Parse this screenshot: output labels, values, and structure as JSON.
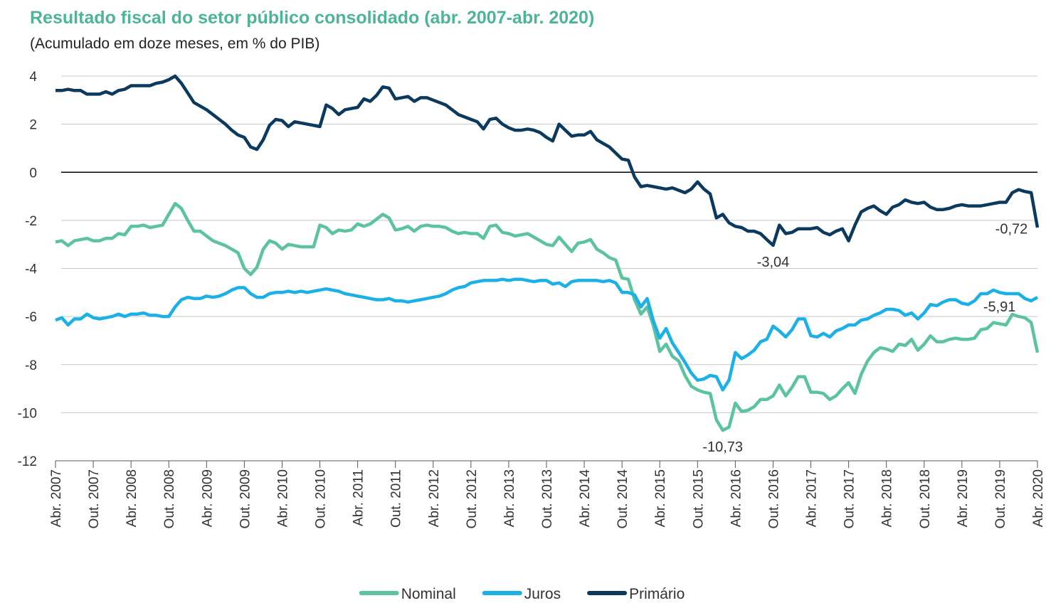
{
  "chart_data": {
    "type": "line",
    "title": "Resultado fiscal do setor público consolidado (abr. 2007-abr. 2020)",
    "subtitle": "(Acumulado em doze meses, em % do PIB)",
    "categories": [
      "Abr. 2007",
      null,
      null,
      null,
      null,
      null,
      "Out. 2007",
      null,
      null,
      null,
      null,
      null,
      "Abr. 2008",
      null,
      null,
      null,
      null,
      null,
      "Out. 2008",
      null,
      null,
      null,
      null,
      null,
      "Abr. 2009",
      null,
      null,
      null,
      null,
      null,
      "Out. 2009",
      null,
      null,
      null,
      null,
      null,
      "Abr. 2010",
      null,
      null,
      null,
      null,
      null,
      "Out. 2010",
      null,
      null,
      null,
      null,
      null,
      "Abr. 2011",
      null,
      null,
      null,
      null,
      null,
      "Out. 2011",
      null,
      null,
      null,
      null,
      null,
      "Abr. 2012",
      null,
      null,
      null,
      null,
      null,
      "Out. 2012",
      null,
      null,
      null,
      null,
      null,
      "Abr. 2013",
      null,
      null,
      null,
      null,
      null,
      "Out. 2013",
      null,
      null,
      null,
      null,
      null,
      "Abr. 2014",
      null,
      null,
      null,
      null,
      null,
      "Out. 2014",
      null,
      null,
      null,
      null,
      null,
      "Abr. 2015",
      null,
      null,
      null,
      null,
      null,
      "Out. 2015",
      null,
      null,
      null,
      null,
      null,
      "Abr. 2016",
      null,
      null,
      null,
      null,
      null,
      "Out. 2016",
      null,
      null,
      null,
      null,
      null,
      "Abr. 2017",
      null,
      null,
      null,
      null,
      null,
      "Out. 2017",
      null,
      null,
      null,
      null,
      null,
      "Abr. 2018",
      null,
      null,
      null,
      null,
      null,
      "Out. 2018",
      null,
      null,
      null,
      null,
      null,
      "Abr. 2019",
      null,
      null,
      null,
      null,
      null,
      "Out. 2019",
      null,
      null,
      null,
      null,
      null,
      "Abr. 2020"
    ],
    "series": [
      {
        "name": "Nominal",
        "color": "#5cc3a0",
        "values": [
          -2.9,
          -2.85,
          -3.05,
          -2.85,
          -2.8,
          -2.75,
          -2.85,
          -2.85,
          -2.75,
          -2.75,
          -2.55,
          -2.6,
          -2.25,
          -2.25,
          -2.2,
          -2.3,
          -2.25,
          -2.2,
          -1.75,
          -1.3,
          -1.5,
          -2.0,
          -2.45,
          -2.45,
          -2.65,
          -2.85,
          -2.95,
          -3.05,
          -3.2,
          -3.35,
          -4.0,
          -4.25,
          -3.95,
          -3.2,
          -2.85,
          -2.95,
          -3.2,
          -3.0,
          -3.05,
          -3.1,
          -3.1,
          -3.1,
          -2.2,
          -2.3,
          -2.55,
          -2.4,
          -2.45,
          -2.4,
          -2.15,
          -2.25,
          -2.15,
          -1.95,
          -1.75,
          -1.9,
          -2.4,
          -2.35,
          -2.25,
          -2.45,
          -2.25,
          -2.2,
          -2.25,
          -2.25,
          -2.3,
          -2.45,
          -2.55,
          -2.5,
          -2.55,
          -2.55,
          -2.75,
          -2.25,
          -2.2,
          -2.5,
          -2.55,
          -2.65,
          -2.6,
          -2.55,
          -2.7,
          -2.85,
          -3.0,
          -3.05,
          -2.7,
          -3.0,
          -3.3,
          -2.95,
          -2.9,
          -2.8,
          -3.2,
          -3.35,
          -3.55,
          -3.65,
          -4.4,
          -4.45,
          -5.3,
          -5.9,
          -5.6,
          -6.4,
          -7.45,
          -7.15,
          -7.65,
          -7.85,
          -8.45,
          -8.9,
          -9.05,
          -9.15,
          -9.2,
          -10.3,
          -10.73,
          -10.6,
          -9.6,
          -9.95,
          -9.9,
          -9.75,
          -9.45,
          -9.45,
          -9.3,
          -8.85,
          -9.3,
          -8.95,
          -8.5,
          -8.5,
          -9.15,
          -9.15,
          -9.2,
          -9.45,
          -9.3,
          -9.0,
          -8.75,
          -9.2,
          -8.4,
          -7.85,
          -7.5,
          -7.3,
          -7.35,
          -7.45,
          -7.15,
          -7.2,
          -6.95,
          -7.4,
          -7.15,
          -6.8,
          -7.05,
          -7.05,
          -6.95,
          -6.9,
          -6.95,
          -6.95,
          -6.9,
          -6.55,
          -6.5,
          -6.25,
          -6.3,
          -6.35,
          -5.91,
          -6.0,
          -6.05,
          -6.25,
          -7.5
        ],
        "value_labels": {
          "106": "-10,73",
          "152": "-5,91"
        }
      },
      {
        "name": "Juros",
        "color": "#1bb0e6",
        "values": [
          -6.15,
          -6.05,
          -6.35,
          -6.1,
          -6.1,
          -5.9,
          -6.05,
          -6.1,
          -6.05,
          -6.0,
          -5.9,
          -6.0,
          -5.9,
          -5.9,
          -5.85,
          -5.95,
          -5.95,
          -6.0,
          -6.0,
          -5.6,
          -5.3,
          -5.2,
          -5.25,
          -5.25,
          -5.15,
          -5.2,
          -5.15,
          -5.05,
          -4.9,
          -4.8,
          -4.8,
          -5.05,
          -5.2,
          -5.2,
          -5.05,
          -5.0,
          -5.0,
          -4.95,
          -5.0,
          -4.95,
          -5.0,
          -4.95,
          -4.9,
          -4.85,
          -4.9,
          -4.95,
          -5.05,
          -5.1,
          -5.15,
          -5.2,
          -5.25,
          -5.3,
          -5.3,
          -5.25,
          -5.35,
          -5.35,
          -5.4,
          -5.35,
          -5.3,
          -5.25,
          -5.2,
          -5.15,
          -5.05,
          -4.9,
          -4.8,
          -4.75,
          -4.6,
          -4.55,
          -4.5,
          -4.5,
          -4.5,
          -4.45,
          -4.5,
          -4.45,
          -4.45,
          -4.5,
          -4.55,
          -4.5,
          -4.5,
          -4.65,
          -4.6,
          -4.75,
          -4.55,
          -4.5,
          -4.5,
          -4.5,
          -4.5,
          -4.55,
          -4.5,
          -4.6,
          -5.0,
          -5.0,
          -5.1,
          -5.6,
          -5.25,
          -6.2,
          -6.9,
          -6.5,
          -7.1,
          -7.5,
          -7.9,
          -8.35,
          -8.65,
          -8.6,
          -8.45,
          -8.5,
          -9.05,
          -8.65,
          -7.5,
          -7.75,
          -7.6,
          -7.4,
          -7.05,
          -6.95,
          -6.4,
          -6.6,
          -6.85,
          -6.55,
          -6.1,
          -6.1,
          -6.8,
          -6.85,
          -6.7,
          -6.85,
          -6.6,
          -6.5,
          -6.35,
          -6.35,
          -6.15,
          -6.1,
          -5.95,
          -5.85,
          -5.7,
          -5.7,
          -5.75,
          -5.95,
          -5.85,
          -6.1,
          -5.85,
          -5.5,
          -5.55,
          -5.4,
          -5.3,
          -5.3,
          -5.45,
          -5.5,
          -5.35,
          -5.05,
          -5.05,
          -4.9,
          -5.0,
          -5.05,
          -5.05,
          -5.05,
          -5.25,
          -5.35,
          -5.2
        ]
      },
      {
        "name": "Primário",
        "color": "#0c3a5e",
        "values": [
          3.4,
          3.4,
          3.45,
          3.4,
          3.4,
          3.25,
          3.25,
          3.25,
          3.35,
          3.25,
          3.4,
          3.45,
          3.6,
          3.6,
          3.6,
          3.6,
          3.7,
          3.75,
          3.85,
          4.0,
          3.7,
          3.3,
          2.9,
          2.75,
          2.6,
          2.4,
          2.2,
          2.0,
          1.75,
          1.55,
          1.45,
          1.05,
          0.95,
          1.35,
          1.95,
          2.2,
          2.15,
          1.9,
          2.1,
          2.05,
          2.0,
          1.95,
          1.9,
          2.8,
          2.65,
          2.4,
          2.6,
          2.65,
          2.7,
          3.05,
          2.95,
          3.2,
          3.55,
          3.5,
          3.05,
          3.1,
          3.15,
          2.95,
          3.1,
          3.1,
          3.0,
          2.9,
          2.8,
          2.6,
          2.4,
          2.3,
          2.2,
          2.1,
          1.8,
          2.2,
          2.25,
          2.0,
          1.85,
          1.75,
          1.75,
          1.8,
          1.75,
          1.65,
          1.45,
          1.3,
          2.0,
          1.75,
          1.5,
          1.55,
          1.55,
          1.7,
          1.35,
          1.2,
          1.05,
          0.8,
          0.55,
          0.5,
          -0.2,
          -0.6,
          -0.55,
          -0.6,
          -0.65,
          -0.7,
          -0.65,
          -0.75,
          -0.85,
          -0.7,
          -0.4,
          -0.7,
          -0.9,
          -1.9,
          -1.75,
          -2.1,
          -2.25,
          -2.3,
          -2.45,
          -2.45,
          -2.55,
          -2.8,
          -3.04,
          -2.2,
          -2.55,
          -2.5,
          -2.35,
          -2.35,
          -2.35,
          -2.3,
          -2.5,
          -2.6,
          -2.45,
          -2.35,
          -2.85,
          -2.2,
          -1.65,
          -1.5,
          -1.4,
          -1.6,
          -1.75,
          -1.45,
          -1.35,
          -1.15,
          -1.25,
          -1.3,
          -1.25,
          -1.45,
          -1.55,
          -1.55,
          -1.5,
          -1.4,
          -1.35,
          -1.4,
          -1.4,
          -1.4,
          -1.35,
          -1.3,
          -1.25,
          -1.25,
          -0.85,
          -0.72,
          -0.8,
          -0.85,
          -2.3
        ],
        "value_labels": {
          "114": "-3,04",
          "153": "-0,72"
        }
      }
    ],
    "ylim": [
      -12,
      4
    ],
    "yticks": [
      -12,
      -10,
      -8,
      -6,
      -4,
      -2,
      0,
      2,
      4
    ],
    "grid": true,
    "legend": "bottom"
  }
}
